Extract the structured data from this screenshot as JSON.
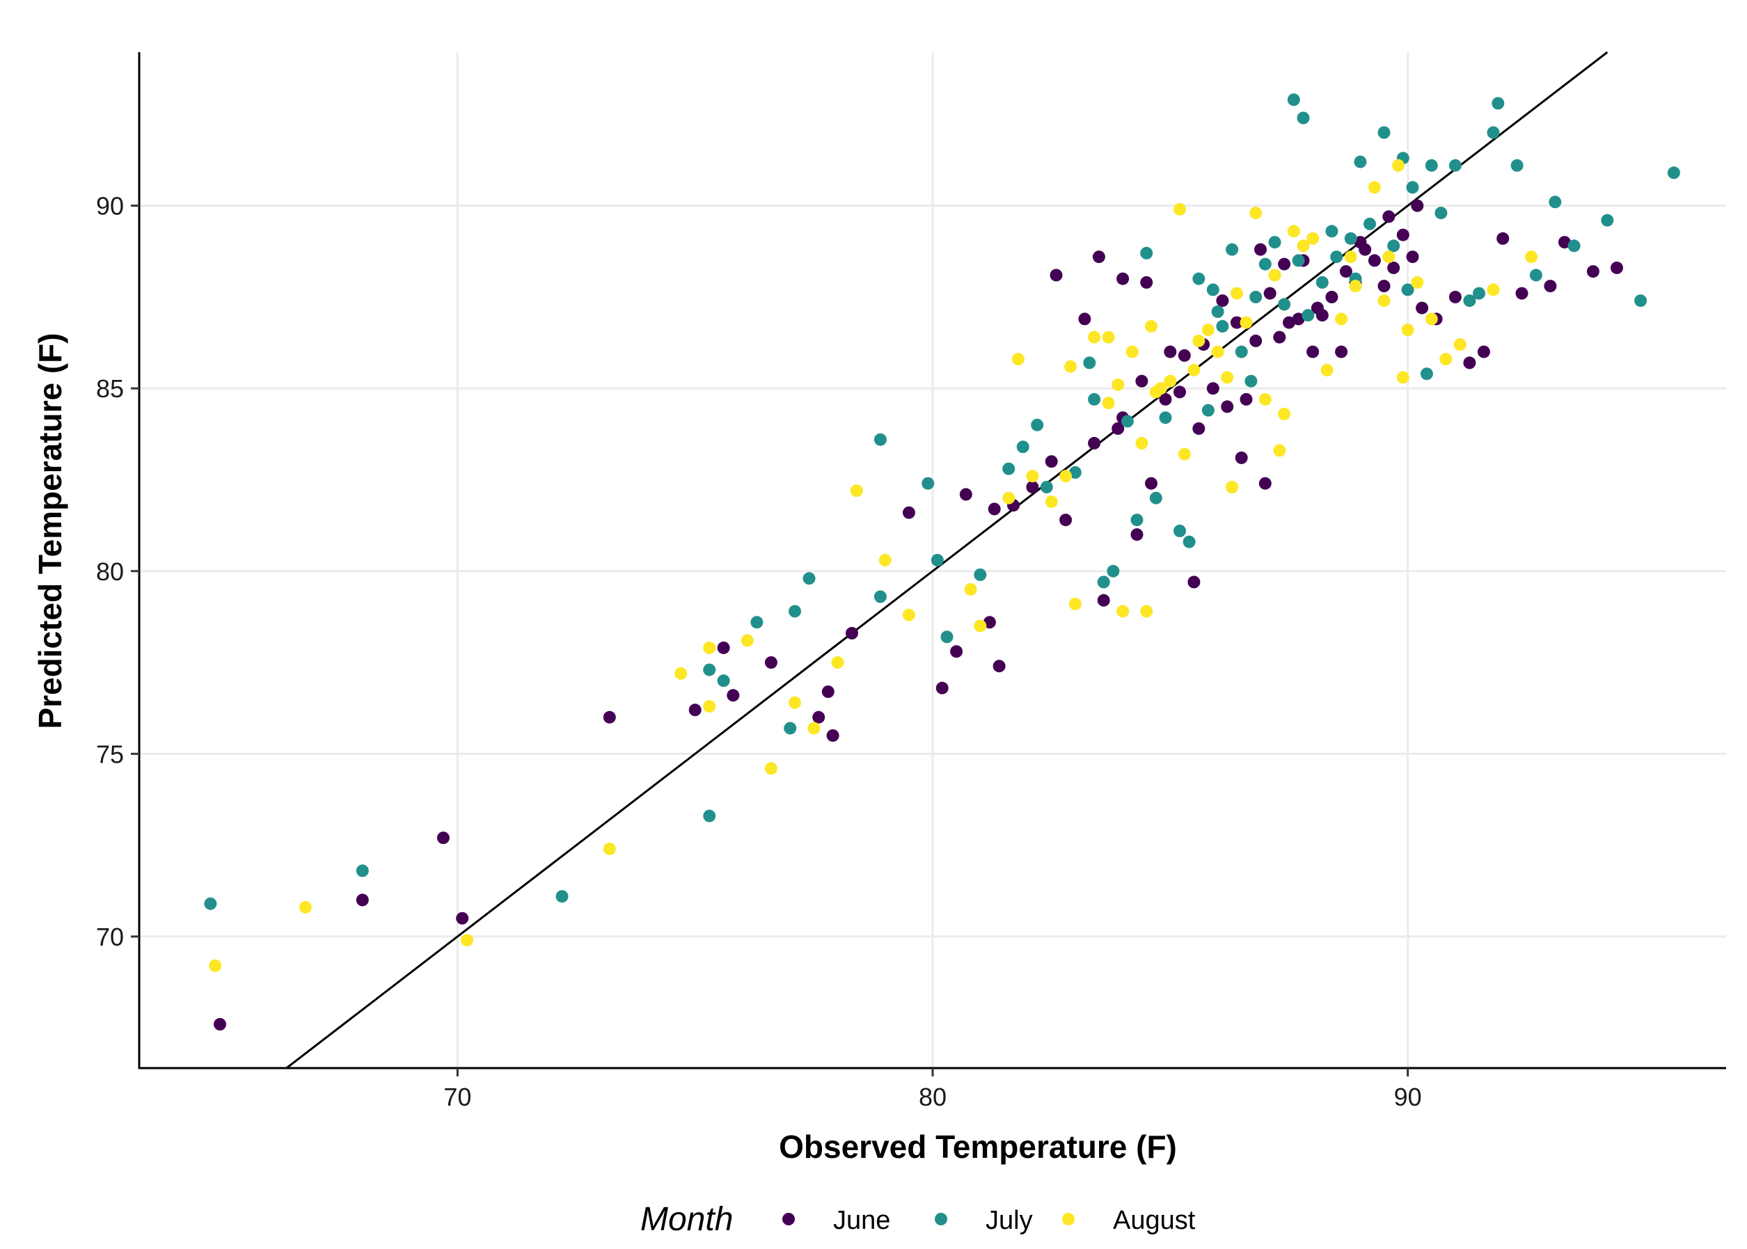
{
  "chart_data": {
    "type": "scatter",
    "title": "",
    "xlabel": "Observed Temperature (F)",
    "ylabel": "Predicted Temperature (F)",
    "xlim": [
      63.3,
      96.7
    ],
    "ylim": [
      66.4,
      94.2
    ],
    "x_ticks": [
      70,
      80,
      90
    ],
    "y_ticks": [
      70,
      75,
      80,
      85,
      90
    ],
    "x_tick_labels": [
      "70",
      "80",
      "90"
    ],
    "y_tick_labels": [
      "70",
      "75",
      "80",
      "85",
      "90"
    ],
    "grid": true,
    "reference_line": {
      "type": "identity",
      "label": "1:1 line"
    },
    "legend": {
      "title": "Month",
      "position": "bottom",
      "entries": [
        {
          "name": "June",
          "color": "#440154"
        },
        {
          "name": "July",
          "color": "#21908C"
        },
        {
          "name": "August",
          "color": "#FDE725"
        }
      ]
    },
    "series": [
      {
        "name": "June",
        "color": "#440154",
        "points": [
          [
            65.0,
            67.6
          ],
          [
            68.0,
            71.0
          ],
          [
            69.7,
            72.7
          ],
          [
            70.1,
            70.5
          ],
          [
            73.2,
            76.0
          ],
          [
            75.0,
            76.2
          ],
          [
            75.6,
            77.9
          ],
          [
            75.8,
            76.6
          ],
          [
            76.6,
            77.5
          ],
          [
            77.8,
            76.7
          ],
          [
            77.9,
            75.5
          ],
          [
            77.6,
            76.0
          ],
          [
            78.3,
            78.3
          ],
          [
            79.5,
            81.6
          ],
          [
            80.2,
            76.8
          ],
          [
            80.5,
            77.8
          ],
          [
            80.7,
            82.1
          ],
          [
            81.2,
            78.6
          ],
          [
            81.4,
            77.4
          ],
          [
            81.3,
            81.7
          ],
          [
            81.7,
            81.8
          ],
          [
            82.1,
            82.3
          ],
          [
            82.5,
            83.0
          ],
          [
            82.8,
            81.4
          ],
          [
            83.4,
            83.5
          ],
          [
            83.6,
            79.2
          ],
          [
            84.0,
            84.2
          ],
          [
            84.3,
            81.0
          ],
          [
            84.6,
            82.4
          ],
          [
            85.5,
            79.7
          ],
          [
            85.6,
            83.9
          ],
          [
            85.9,
            85.0
          ],
          [
            86.2,
            84.5
          ],
          [
            86.5,
            83.1
          ],
          [
            86.6,
            84.7
          ],
          [
            86.8,
            86.3
          ],
          [
            87.0,
            82.4
          ],
          [
            87.3,
            86.4
          ],
          [
            87.5,
            86.8
          ],
          [
            87.7,
            86.9
          ],
          [
            87.8,
            88.5
          ],
          [
            88.0,
            86.0
          ],
          [
            88.2,
            87.0
          ],
          [
            88.4,
            87.5
          ],
          [
            88.7,
            88.2
          ],
          [
            88.9,
            87.9
          ],
          [
            89.0,
            89.0
          ],
          [
            89.3,
            88.5
          ],
          [
            89.5,
            87.8
          ],
          [
            89.7,
            88.3
          ],
          [
            89.9,
            89.2
          ],
          [
            90.1,
            88.6
          ],
          [
            90.3,
            87.2
          ],
          [
            90.6,
            86.9
          ],
          [
            91.0,
            87.5
          ],
          [
            91.3,
            85.7
          ],
          [
            91.6,
            86.0
          ],
          [
            92.0,
            89.1
          ],
          [
            92.4,
            87.6
          ],
          [
            93.0,
            87.8
          ],
          [
            93.3,
            89.0
          ],
          [
            93.9,
            88.2
          ],
          [
            94.4,
            88.3
          ],
          [
            82.6,
            88.1
          ],
          [
            83.5,
            88.6
          ],
          [
            83.2,
            86.9
          ],
          [
            84.0,
            88.0
          ],
          [
            84.5,
            87.9
          ],
          [
            85.0,
            86.0
          ],
          [
            85.7,
            86.2
          ],
          [
            86.1,
            87.4
          ],
          [
            86.9,
            88.8
          ],
          [
            87.1,
            87.6
          ],
          [
            88.6,
            86.0
          ],
          [
            89.1,
            88.8
          ],
          [
            89.6,
            89.7
          ],
          [
            90.2,
            90.0
          ],
          [
            88.1,
            87.2
          ],
          [
            87.4,
            88.4
          ],
          [
            86.4,
            86.8
          ],
          [
            85.3,
            85.9
          ],
          [
            84.9,
            84.7
          ],
          [
            83.9,
            83.9
          ],
          [
            84.4,
            85.2
          ],
          [
            85.2,
            84.9
          ]
        ]
      },
      {
        "name": "July",
        "color": "#21908C",
        "points": [
          [
            64.8,
            70.9
          ],
          [
            68.0,
            71.8
          ],
          [
            72.2,
            71.1
          ],
          [
            75.3,
            73.3
          ],
          [
            75.3,
            77.3
          ],
          [
            75.6,
            77.0
          ],
          [
            76.3,
            78.6
          ],
          [
            77.1,
            78.9
          ],
          [
            77.4,
            79.8
          ],
          [
            77.0,
            75.7
          ],
          [
            78.9,
            83.6
          ],
          [
            78.9,
            79.3
          ],
          [
            79.9,
            82.4
          ],
          [
            80.1,
            80.3
          ],
          [
            80.3,
            78.2
          ],
          [
            81.0,
            79.9
          ],
          [
            81.6,
            82.8
          ],
          [
            81.9,
            83.4
          ],
          [
            82.4,
            82.3
          ],
          [
            83.0,
            82.7
          ],
          [
            83.6,
            79.7
          ],
          [
            83.8,
            80.0
          ],
          [
            84.1,
            84.1
          ],
          [
            84.3,
            81.4
          ],
          [
            84.7,
            82.0
          ],
          [
            85.2,
            81.1
          ],
          [
            85.4,
            80.8
          ],
          [
            85.8,
            84.4
          ],
          [
            86.1,
            86.7
          ],
          [
            86.5,
            86.0
          ],
          [
            86.8,
            87.5
          ],
          [
            87.0,
            88.4
          ],
          [
            87.4,
            87.3
          ],
          [
            87.6,
            92.9
          ],
          [
            87.8,
            92.4
          ],
          [
            88.2,
            87.9
          ],
          [
            88.5,
            88.6
          ],
          [
            88.8,
            89.1
          ],
          [
            89.0,
            91.2
          ],
          [
            89.5,
            92.0
          ],
          [
            89.9,
            91.3
          ],
          [
            90.1,
            90.5
          ],
          [
            90.5,
            91.1
          ],
          [
            91.0,
            91.1
          ],
          [
            91.8,
            92.0
          ],
          [
            91.9,
            92.8
          ],
          [
            91.3,
            87.4
          ],
          [
            92.3,
            91.1
          ],
          [
            92.7,
            88.1
          ],
          [
            93.1,
            90.1
          ],
          [
            93.5,
            88.9
          ],
          [
            94.2,
            89.6
          ],
          [
            94.9,
            87.4
          ],
          [
            95.6,
            90.9
          ],
          [
            90.4,
            85.4
          ],
          [
            83.3,
            85.7
          ],
          [
            84.5,
            88.7
          ],
          [
            85.6,
            88.0
          ],
          [
            86.3,
            88.8
          ],
          [
            87.2,
            89.0
          ],
          [
            87.7,
            88.5
          ],
          [
            88.4,
            89.3
          ],
          [
            89.2,
            89.5
          ],
          [
            89.7,
            88.9
          ],
          [
            90.7,
            89.8
          ],
          [
            91.5,
            87.6
          ],
          [
            86.7,
            85.2
          ],
          [
            85.9,
            87.7
          ],
          [
            82.2,
            84.0
          ],
          [
            83.4,
            84.7
          ],
          [
            84.9,
            84.2
          ],
          [
            86.0,
            87.1
          ],
          [
            87.9,
            87.0
          ],
          [
            88.9,
            88.0
          ],
          [
            90.0,
            87.7
          ]
        ]
      },
      {
        "name": "August",
        "color": "#FDE725",
        "points": [
          [
            64.9,
            69.2
          ],
          [
            66.8,
            70.8
          ],
          [
            70.2,
            69.9
          ],
          [
            73.2,
            72.4
          ],
          [
            74.7,
            77.2
          ],
          [
            75.3,
            77.9
          ],
          [
            75.3,
            76.3
          ],
          [
            76.1,
            78.1
          ],
          [
            76.6,
            74.6
          ],
          [
            77.1,
            76.4
          ],
          [
            77.5,
            75.7
          ],
          [
            78.0,
            77.5
          ],
          [
            78.4,
            82.2
          ],
          [
            79.0,
            80.3
          ],
          [
            79.5,
            78.8
          ],
          [
            80.8,
            79.5
          ],
          [
            81.0,
            78.5
          ],
          [
            81.6,
            82.0
          ],
          [
            82.1,
            82.6
          ],
          [
            82.5,
            81.9
          ],
          [
            82.8,
            82.6
          ],
          [
            83.0,
            79.1
          ],
          [
            83.4,
            86.4
          ],
          [
            83.7,
            84.6
          ],
          [
            84.0,
            78.9
          ],
          [
            84.5,
            78.9
          ],
          [
            84.4,
            83.5
          ],
          [
            84.7,
            84.9
          ],
          [
            85.0,
            85.2
          ],
          [
            85.2,
            89.9
          ],
          [
            85.5,
            85.5
          ],
          [
            86.0,
            86.0
          ],
          [
            86.3,
            82.3
          ],
          [
            86.6,
            86.8
          ],
          [
            87.0,
            84.7
          ],
          [
            87.3,
            83.3
          ],
          [
            87.6,
            89.3
          ],
          [
            88.0,
            89.1
          ],
          [
            88.3,
            85.5
          ],
          [
            88.8,
            88.6
          ],
          [
            89.3,
            90.5
          ],
          [
            89.8,
            91.1
          ],
          [
            89.9,
            85.3
          ],
          [
            90.2,
            87.9
          ],
          [
            90.5,
            86.9
          ],
          [
            91.1,
            86.2
          ],
          [
            91.8,
            87.7
          ],
          [
            92.6,
            88.6
          ],
          [
            81.8,
            85.8
          ],
          [
            82.9,
            85.6
          ],
          [
            83.7,
            86.4
          ],
          [
            84.2,
            86.0
          ],
          [
            84.8,
            85.0
          ],
          [
            85.3,
            83.2
          ],
          [
            85.8,
            86.6
          ],
          [
            86.4,
            87.6
          ],
          [
            86.8,
            89.8
          ],
          [
            87.2,
            88.1
          ],
          [
            87.8,
            88.9
          ],
          [
            88.6,
            86.9
          ],
          [
            89.5,
            87.4
          ],
          [
            90.0,
            86.6
          ],
          [
            90.8,
            85.8
          ],
          [
            84.6,
            86.7
          ],
          [
            85.6,
            86.3
          ],
          [
            86.2,
            85.3
          ],
          [
            87.4,
            84.3
          ],
          [
            88.9,
            87.8
          ],
          [
            89.6,
            88.6
          ],
          [
            83.9,
            85.1
          ]
        ]
      }
    ]
  }
}
